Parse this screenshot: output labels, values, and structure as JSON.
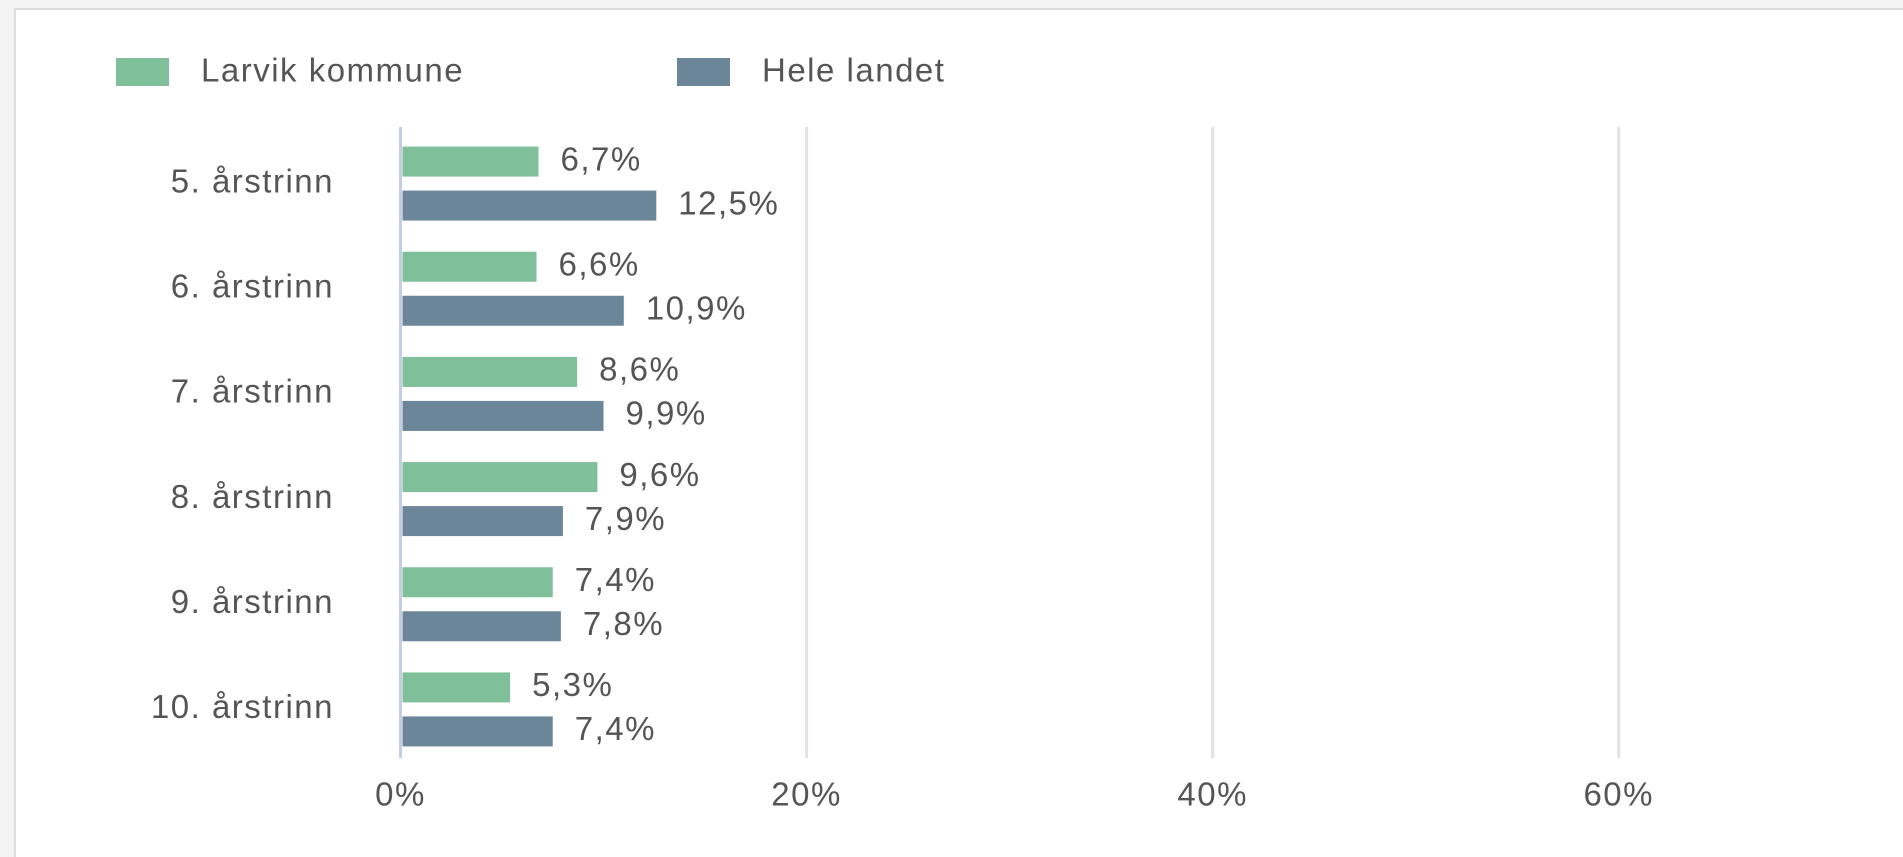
{
  "chart_data": {
    "type": "bar",
    "orientation": "horizontal",
    "categories": [
      "5. årstrinn",
      "6. årstrinn",
      "7. årstrinn",
      "8. årstrinn",
      "9. årstrinn",
      "10. årstrinn"
    ],
    "series": [
      {
        "name": "Larvik kommune",
        "color": "#7fbf9a",
        "values": [
          6.7,
          6.6,
          8.6,
          9.6,
          7.4,
          5.3
        ],
        "value_labels": [
          "6,7%",
          "6,6%",
          "8,6%",
          "9,6%",
          "7,4%",
          "5,3%"
        ]
      },
      {
        "name": "Hele landet",
        "color": "#6b8599",
        "values": [
          12.5,
          10.9,
          9.9,
          7.9,
          7.8,
          7.4
        ],
        "value_labels": [
          "12,5%",
          "10,9%",
          "9,9%",
          "7,9%",
          "7,8%",
          "7,4%"
        ]
      }
    ],
    "xlim": [
      0,
      74
    ],
    "xticks": [
      {
        "value": 0,
        "label": "0%"
      },
      {
        "value": 20,
        "label": "20%"
      },
      {
        "value": 40,
        "label": "40%"
      },
      {
        "value": 60,
        "label": "60%"
      }
    ],
    "grid": true,
    "legend": "top"
  }
}
